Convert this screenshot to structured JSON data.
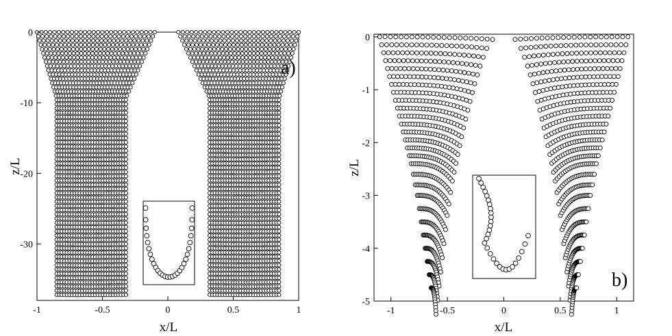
{
  "chart_data": [
    {
      "type": "scatter",
      "panel_label": "a)",
      "xlabel": "x/L",
      "ylabel": "z/L",
      "xlim": [
        -1,
        1
      ],
      "ylim": [
        -38,
        0
      ],
      "xticks": [
        -1,
        -0.5,
        0,
        0.5,
        1
      ],
      "xtick_labels": [
        "-1",
        "-0.5",
        "0",
        "0.5",
        "1"
      ],
      "yticks": [
        0,
        -10,
        -20,
        -30
      ],
      "ytick_labels": [
        "0",
        "-10",
        "-20",
        "-30"
      ],
      "grid": false,
      "legend": "none",
      "description_data": {
        "layers_z": [
          0,
          -0.6,
          -1.2,
          -1.8,
          -2.4,
          -3.0,
          -3.6,
          -4.2,
          -4.8,
          -5.4,
          -6.0,
          -6.6,
          -7.2,
          -7.8,
          -8.4,
          -9.0,
          -9.6,
          -10.2,
          -10.8,
          -11.4,
          -12.0,
          -12.6,
          -13.2,
          -13.8,
          -14.4,
          -15.0,
          -15.6,
          -16.2,
          -16.8,
          -17.4,
          -18.0,
          -18.6,
          -19.2,
          -19.8,
          -20.4,
          -21.0,
          -21.6,
          -22.2,
          -22.8,
          -23.4,
          -24.0,
          -24.6,
          -25.2,
          -25.8,
          -26.4,
          -27.0,
          -27.6,
          -28.2,
          -28.8,
          -29.4,
          -30.0,
          -30.6,
          -31.2,
          -31.8,
          -32.4,
          -33.0,
          -33.6,
          -34.2,
          -34.8,
          -35.4,
          -36.0,
          -36.6,
          -37.2
        ],
        "left_outer_x_top": -1.0,
        "left_outer_x_bottom": -0.85,
        "left_inner_x_top": -0.1,
        "left_inner_x_bottom": -0.32,
        "right_inner_x_top": 0.08,
        "right_inner_x_bottom": 0.32,
        "right_outer_x_top": 1.0,
        "right_outer_x_bottom": 0.85
      },
      "inset": {
        "type": "scatter",
        "shape": "U-shaped detail of a single layer profile"
      }
    },
    {
      "type": "scatter",
      "panel_label": "b)",
      "xlabel": "x/L",
      "ylabel": "z/L",
      "xlim": [
        -1.15,
        1.15
      ],
      "ylim": [
        -5,
        0.05
      ],
      "xticks": [
        -1,
        -0.5,
        0,
        0.5,
        1
      ],
      "xtick_labels": [
        "-1",
        "-0.5",
        "0",
        "0.5",
        "1"
      ],
      "yticks": [
        0,
        -1,
        -2,
        -3,
        -4,
        -5
      ],
      "ytick_labels": [
        "0",
        "-1",
        "-2",
        "-3",
        "-4",
        "-5"
      ],
      "grid": false,
      "legend": "none",
      "description_data": {
        "layers_z": [
          0,
          -0.15,
          -0.3,
          -0.45,
          -0.6,
          -0.75,
          -0.9,
          -1.05,
          -1.2,
          -1.35,
          -1.5,
          -1.65,
          -1.8,
          -1.95,
          -2.1,
          -2.25,
          -2.4,
          -2.6,
          -2.8,
          -3.0,
          -3.25,
          -3.5,
          -3.75,
          -4.0,
          -4.25,
          -4.5,
          -4.75
        ],
        "left_outer_x_top": -1.1,
        "left_inner_x_top": -0.1,
        "right_inner_x_top": 0.1,
        "right_outer_x_top": 1.1,
        "bottom_left_x": -0.62,
        "bottom_right_x": 0.62
      },
      "inset": {
        "type": "scatter",
        "shape": "J-shaped detail of a single layer profile"
      }
    }
  ]
}
